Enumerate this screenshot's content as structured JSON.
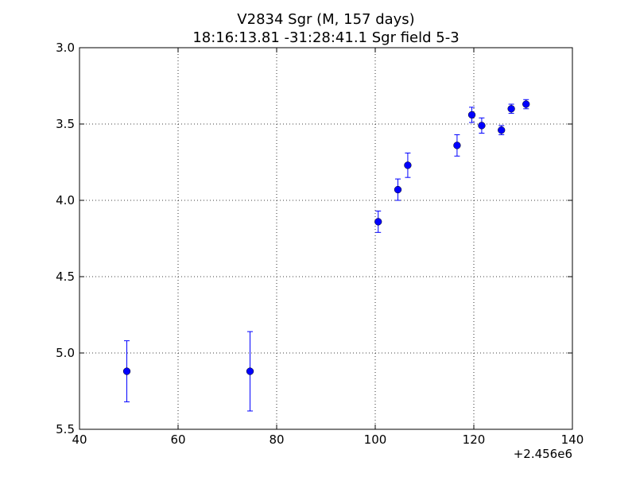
{
  "chart_data": {
    "type": "scatter",
    "title": "V2834 Sgr  (M, 157 days)",
    "subtitle": "18:16:13.81 -31:28:41.1 Sgr field 5-3",
    "xlabel": "",
    "ylabel": "",
    "x_offset_label": "+2.456e6",
    "xlim": [
      40,
      140
    ],
    "ylim": [
      5.5,
      3.0
    ],
    "y_inverted": true,
    "x_ticks": [
      40,
      60,
      80,
      100,
      120,
      140
    ],
    "x_tick_labels": [
      "40",
      "60",
      "80",
      "100",
      "120",
      "140"
    ],
    "y_ticks": [
      3.0,
      3.5,
      4.0,
      4.5,
      5.0,
      5.5
    ],
    "y_tick_labels": [
      "3.0",
      "3.5",
      "4.0",
      "4.5",
      "5.0",
      "5.5"
    ],
    "grid": true,
    "marker_color": "#0000ff",
    "errorbar_color": "#0000ff",
    "series": [
      {
        "points": [
          {
            "x": 49.6,
            "y": 5.12,
            "err": 0.2
          },
          {
            "x": 74.6,
            "y": 5.12,
            "err": 0.26
          },
          {
            "x": 100.6,
            "y": 4.14,
            "err": 0.07
          },
          {
            "x": 104.6,
            "y": 3.93,
            "err": 0.07
          },
          {
            "x": 106.6,
            "y": 3.77,
            "err": 0.08
          },
          {
            "x": 116.6,
            "y": 3.64,
            "err": 0.07
          },
          {
            "x": 119.6,
            "y": 3.44,
            "err": 0.05
          },
          {
            "x": 121.6,
            "y": 3.51,
            "err": 0.05
          },
          {
            "x": 125.6,
            "y": 3.54,
            "err": 0.03
          },
          {
            "x": 127.6,
            "y": 3.4,
            "err": 0.03
          },
          {
            "x": 130.6,
            "y": 3.37,
            "err": 0.03
          }
        ]
      }
    ]
  }
}
